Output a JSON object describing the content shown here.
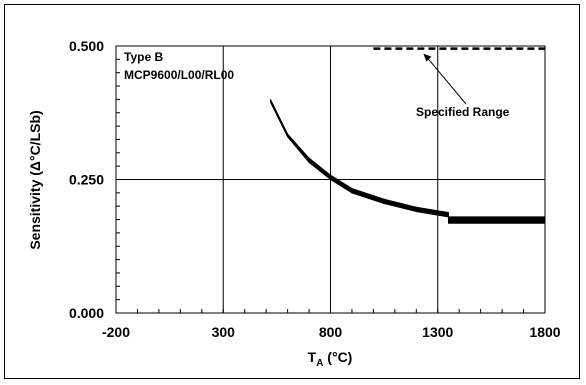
{
  "chart_data": {
    "type": "scatter",
    "title": "",
    "xlabel": "T",
    "xlabel_subscript": "A",
    "xlabel_unit": " (°C)",
    "ylabel": "Sensitivity (Δ°C/LSb)",
    "xlim": [
      -200,
      1800
    ],
    "ylim": [
      0.0,
      0.5
    ],
    "x_ticks": [
      -200,
      300,
      800,
      1300,
      1800
    ],
    "x_tick_labels": [
      "-200",
      "300",
      "800",
      "1300",
      "1800"
    ],
    "y_ticks": [
      0.0,
      0.25,
      0.5
    ],
    "y_tick_labels": [
      "0.000",
      "0.250",
      "0.500"
    ],
    "grid": true,
    "annotations": {
      "type_label": "Type B",
      "device_label": "MCP9600/L00/RL00",
      "range_label": "Specified Range"
    },
    "specified_range": {
      "x": [
        1000,
        1800
      ],
      "y": 0.495,
      "style": "dashed"
    },
    "series": [
      {
        "color": "#000000",
        "segments": [
          {
            "x": [
              520,
              600
            ],
            "y_start": [
              0.4,
              0.395
            ],
            "y_end": [
              0.335,
              0.33
            ]
          },
          {
            "x": [
              600,
              700
            ],
            "y_start": [
              0.335,
              0.33
            ],
            "y_end": [
              0.29,
              0.282
            ]
          },
          {
            "x": [
              700,
              800
            ],
            "y_start": [
              0.29,
              0.282
            ],
            "y_end": [
              0.258,
              0.25
            ]
          },
          {
            "x": [
              800,
              900
            ],
            "y_start": [
              0.258,
              0.25
            ],
            "y_end": [
              0.233,
              0.225
            ]
          },
          {
            "x": [
              900,
              1050
            ],
            "y_start": [
              0.233,
              0.225
            ],
            "y_end": [
              0.213,
              0.205
            ]
          },
          {
            "x": [
              1050,
              1200
            ],
            "y_start": [
              0.213,
              0.205
            ],
            "y_end": [
              0.198,
              0.19
            ]
          },
          {
            "x": [
              1200,
              1350
            ],
            "y_start": [
              0.198,
              0.19
            ],
            "y_end": [
              0.188,
              0.18
            ]
          },
          {
            "x": [
              1350,
              1800
            ],
            "y_start": [
              0.18,
              0.168
            ],
            "y_end": [
              0.18,
              0.168
            ]
          }
        ]
      }
    ]
  },
  "colors": {
    "ink": "#000000",
    "background": "#ffffff"
  }
}
